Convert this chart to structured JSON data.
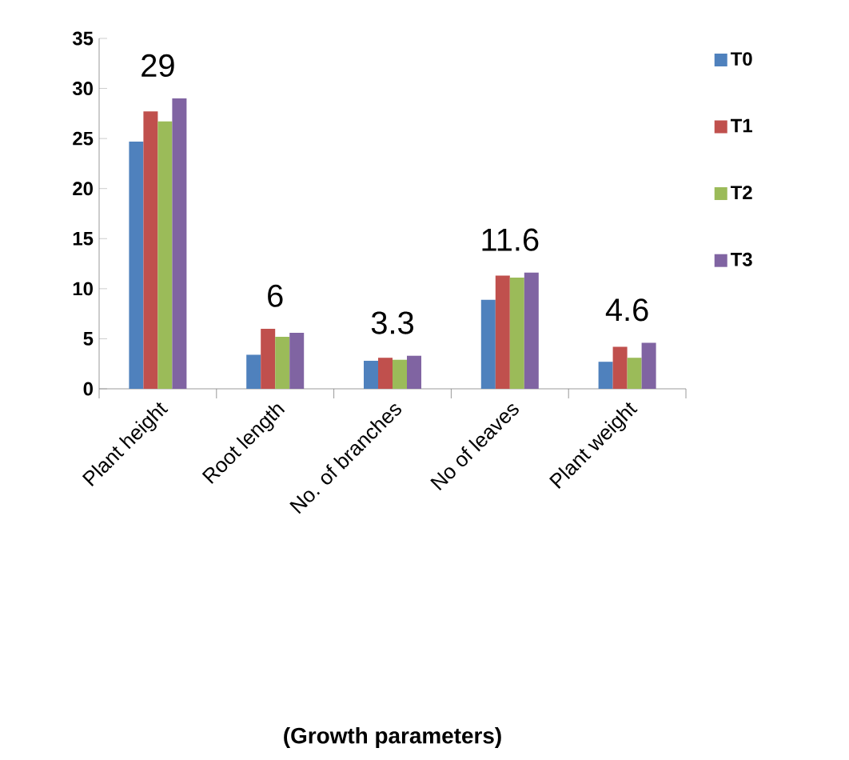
{
  "chart_data": {
    "type": "bar",
    "categories": [
      "Plant height",
      "Root length",
      "No. of branches",
      "No of leaves",
      "Plant weight"
    ],
    "series": [
      {
        "name": "T0",
        "color": "#4f81bd",
        "values": [
          24.7,
          3.4,
          2.8,
          8.9,
          2.7
        ]
      },
      {
        "name": "T1",
        "color": "#c0504d",
        "values": [
          27.7,
          6,
          3.1,
          11.3,
          4.2
        ]
      },
      {
        "name": "T2",
        "color": "#9bbb59",
        "values": [
          26.7,
          5.2,
          2.9,
          11.1,
          3.1
        ]
      },
      {
        "name": "T3",
        "color": "#8064a2",
        "values": [
          29,
          5.6,
          3.3,
          11.6,
          4.6
        ]
      }
    ],
    "ylim": [
      0,
      35
    ],
    "yticks": [
      0,
      5,
      10,
      15,
      20,
      25,
      30,
      35
    ],
    "annotations": [
      "29",
      "6",
      "3.3",
      "11.6",
      "4.6",
      "(Growth parameters)"
    ],
    "legend": "right",
    "grid": false
  }
}
